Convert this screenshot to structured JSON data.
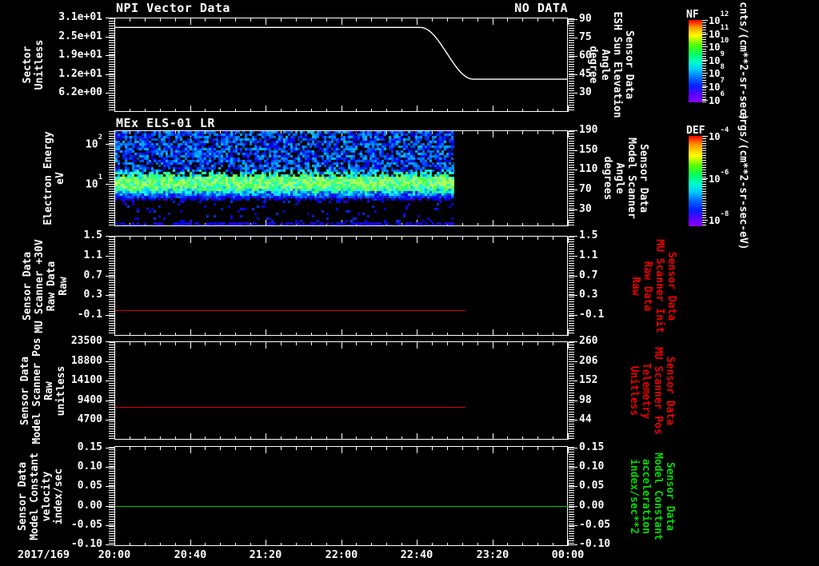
{
  "x_axis": {
    "date_label": "2017/169",
    "tick_labels": [
      "20:00",
      "20:40",
      "21:20",
      "22:00",
      "22:40",
      "23:20",
      "00:00"
    ],
    "range_minutes": [
      0,
      240
    ],
    "major_step_min": 40,
    "minor_step_min": 8
  },
  "colorbars": {
    "nf": {
      "title": "NF",
      "unit": "cnts/(cm**2-sr-sec)",
      "scale": "log",
      "range": [
        630000,
        1000000000000.0
      ],
      "ticks": [
        {
          "v": 1000000000000.0,
          "label": "10^12"
        },
        {
          "v": 100000000000.0,
          "label": "10^11"
        },
        {
          "v": 10000000000.0,
          "label": "10^10"
        },
        {
          "v": 1000000000.0,
          "label": "10^9"
        },
        {
          "v": 100000000.0,
          "label": "10^8"
        },
        {
          "v": 10000000.0,
          "label": "10^7"
        },
        {
          "v": 1000000.0,
          "label": "10^6"
        }
      ],
      "gradient": [
        [
          "#ff0000",
          0
        ],
        [
          "#ff9900",
          9
        ],
        [
          "#ffff00",
          19
        ],
        [
          "#55ff00",
          30
        ],
        [
          "#00ff66",
          42
        ],
        [
          "#00ffcc",
          51
        ],
        [
          "#00ccff",
          60
        ],
        [
          "#0066ff",
          71
        ],
        [
          "#0022ff",
          80
        ],
        [
          "#5500ff",
          90
        ],
        [
          "#8800ff",
          100
        ]
      ]
    },
    "def": {
      "title": "DEF",
      "unit": "ergs/(cm**2-sr-sec-eV)",
      "scale": "log",
      "range": [
        5e-09,
        0.0001
      ],
      "ticks": [
        {
          "v": 0.0001,
          "label": "10^-4"
        },
        {
          "v": 1e-06,
          "label": "10^-6"
        },
        {
          "v": 1e-08,
          "label": "10^-8"
        }
      ],
      "gradient": [
        [
          "#ff0000",
          0
        ],
        [
          "#ff9900",
          10
        ],
        [
          "#ffff00",
          22
        ],
        [
          "#55ff00",
          33
        ],
        [
          "#00ff66",
          44
        ],
        [
          "#00ffcc",
          53
        ],
        [
          "#00ccff",
          62
        ],
        [
          "#0066ff",
          72
        ],
        [
          "#0022ff",
          82
        ],
        [
          "#5500ff",
          91
        ],
        [
          "#8800ff",
          100
        ]
      ]
    }
  },
  "chart_data": [
    {
      "type": "line",
      "title": "NPI Vector Data",
      "annotation": "NO DATA",
      "left_axis": {
        "label_lines": [
          "Sector",
          "Unitless"
        ],
        "label_color": "#ffffff",
        "range": [
          0,
          31
        ],
        "ticks": [
          {
            "v": 31,
            "label": "3.1e+01"
          },
          {
            "v": 24.8,
            "label": "2.5e+01"
          },
          {
            "v": 18.6,
            "label": "1.9e+01"
          },
          {
            "v": 12.4,
            "label": "1.2e+01"
          },
          {
            "v": 6.2,
            "label": "6.2e+00"
          }
        ]
      },
      "right_axis": {
        "label_lines": [
          "Sensor Data",
          "ESH Sun Elevation",
          "Angle",
          "degree"
        ],
        "label_color": "#ffffff",
        "range": [
          14.5,
          91.5
        ],
        "ticks": [
          {
            "v": 90,
            "label": "90"
          },
          {
            "v": 75,
            "label": "75"
          },
          {
            "v": 60,
            "label": "60"
          },
          {
            "v": 45,
            "label": "45"
          },
          {
            "v": 30,
            "label": "30"
          }
        ]
      },
      "series": [
        {
          "name": "sun-elevation-angle",
          "axis": "right",
          "color": "#ffffff",
          "points_min_value": [
            [
              0,
              84
            ],
            [
              162,
              84
            ],
            [
              190,
              41
            ],
            [
              240,
              41
            ]
          ],
          "smooth_between": [
            162,
            190
          ]
        }
      ]
    },
    {
      "type": "heatmap",
      "title": "MEx ELS-01 LR",
      "left_axis": {
        "label_lines": [
          "Electron Energy",
          "eV"
        ],
        "label_color": "#ffffff",
        "scale": "log",
        "range": [
          0.87,
          219
        ],
        "ticks": [
          {
            "v": 100,
            "label": "10^2"
          },
          {
            "v": 10,
            "label": "10^1"
          }
        ]
      },
      "right_axis": {
        "label_lines": [
          "Sensor Data",
          "Model Scanner",
          "Angle",
          "degrees"
        ],
        "label_color": "#ffffff",
        "range": [
          -4,
          190
        ],
        "ticks": [
          {
            "v": 190,
            "label": "190"
          },
          {
            "v": 150,
            "label": "150"
          },
          {
            "v": 110,
            "label": "110"
          },
          {
            "v": 70,
            "label": "70"
          },
          {
            "v": 30,
            "label": "30"
          }
        ]
      },
      "spectrogram": {
        "x_extent_minutes": [
          0,
          180
        ],
        "band_center_ev": 12,
        "band_peak": 0.95,
        "upper_background": 0.32,
        "colorbar": "def"
      }
    },
    {
      "type": "line",
      "left_axis": {
        "label_lines": [
          "Sensor Data",
          "MU Scanner +30V",
          "Raw Data",
          "Raw"
        ],
        "label_color": "#ffffff",
        "range": [
          -0.52,
          1.5
        ],
        "ticks": [
          {
            "v": 1.5,
            "label": "1.5"
          },
          {
            "v": 1.1,
            "label": "1.1"
          },
          {
            "v": 0.7,
            "label": "0.7"
          },
          {
            "v": 0.3,
            "label": "0.3"
          },
          {
            "v": -0.1,
            "label": "-0.1"
          }
        ]
      },
      "right_axis": {
        "label_lines": [
          "Sensor Data",
          "MU Scanner Init",
          "Raw Data",
          "Raw"
        ],
        "label_color": "#ee0000",
        "range": [
          -0.52,
          1.5
        ],
        "ticks": [
          {
            "v": 1.5,
            "label": "1.5"
          },
          {
            "v": 1.1,
            "label": "1.1"
          },
          {
            "v": 0.7,
            "label": "0.7"
          },
          {
            "v": 0.3,
            "label": "0.3"
          },
          {
            "v": -0.1,
            "label": "-0.1"
          }
        ]
      },
      "series": [
        {
          "name": "mu-scanner-30v-raw",
          "axis": "left",
          "color": "#dd0000",
          "constant_value": 0.0,
          "x_extent_minutes": [
            0,
            186
          ]
        }
      ]
    },
    {
      "type": "line",
      "left_axis": {
        "label_lines": [
          "Sensor Data",
          "Model Scanner Pos",
          "Raw",
          "unitless"
        ],
        "label_color": "#ffffff",
        "range": [
          0,
          23500
        ],
        "ticks": [
          {
            "v": 23500,
            "label": "23500"
          },
          {
            "v": 18800,
            "label": "18800"
          },
          {
            "v": 14100,
            "label": "14100"
          },
          {
            "v": 9400,
            "label": "9400"
          },
          {
            "v": 4700,
            "label": "4700"
          }
        ]
      },
      "right_axis": {
        "label_lines": [
          "Sensor Data",
          "MU Scanner Pos",
          "Telemetry",
          "Unitless"
        ],
        "label_color": "#ee0000",
        "range": [
          -11,
          260
        ],
        "ticks": [
          {
            "v": 260,
            "label": "260"
          },
          {
            "v": 206,
            "label": "206"
          },
          {
            "v": 152,
            "label": "152"
          },
          {
            "v": 98,
            "label": "98"
          },
          {
            "v": 44,
            "label": "44"
          }
        ]
      },
      "series": [
        {
          "name": "model-scanner-pos-raw",
          "axis": "left",
          "color": "#dd0000",
          "constant_value": 7900,
          "x_extent_minutes": [
            0,
            186
          ]
        }
      ]
    },
    {
      "type": "line",
      "left_axis": {
        "label_lines": [
          "Sensor Data",
          "Model Constant",
          "velocity",
          "index/sec"
        ],
        "label_color": "#ffffff",
        "range": [
          -0.104,
          0.154
        ],
        "ticks": [
          {
            "v": 0.15,
            "label": "0.15"
          },
          {
            "v": 0.1,
            "label": "0.10"
          },
          {
            "v": 0.05,
            "label": "0.05"
          },
          {
            "v": 0.0,
            "label": "0.00"
          },
          {
            "v": -0.05,
            "label": "-0.05"
          },
          {
            "v": -0.1,
            "label": "-0.10"
          }
        ]
      },
      "right_axis": {
        "label_lines": [
          "Sensor Data",
          "Model Constant",
          "acceleration",
          "index/sec**2"
        ],
        "label_color": "#00dd00",
        "range": [
          -0.104,
          0.154
        ],
        "ticks": [
          {
            "v": 0.15,
            "label": "0.15"
          },
          {
            "v": 0.1,
            "label": "0.10"
          },
          {
            "v": 0.05,
            "label": "0.05"
          },
          {
            "v": 0.0,
            "label": "0.00"
          },
          {
            "v": -0.05,
            "label": "-0.05"
          },
          {
            "v": -0.1,
            "label": "-0.10"
          }
        ]
      },
      "series": [
        {
          "name": "model-constant-velocity",
          "axis": "left",
          "color": "#00cc00",
          "constant_value": 0.0,
          "x_extent_minutes": [
            0,
            240
          ]
        }
      ]
    }
  ]
}
